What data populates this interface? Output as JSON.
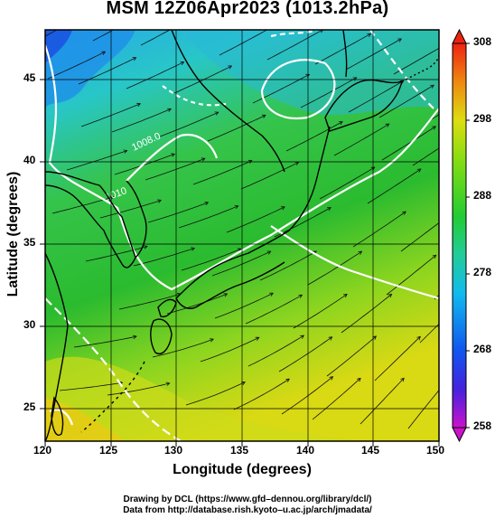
{
  "title": "MSM 12Z06Apr2023 (1013.2hPa)",
  "x_axis": {
    "label": "Longitude (degrees)",
    "ticks": [
      "120",
      "125",
      "130",
      "135",
      "140",
      "145",
      "150"
    ]
  },
  "y_axis": {
    "label": "Latitude  (degrees)",
    "ticks": [
      "25",
      "30",
      "35",
      "40",
      "45"
    ]
  },
  "colorbar": {
    "ticks": [
      "258",
      "268",
      "278",
      "288",
      "298",
      "308"
    ]
  },
  "contour_labels": [
    "1008.0",
    "1010"
  ],
  "credits": [
    "Drawing by DCL (https://www.gfd–dennou.org/library/dcl/)",
    "Data from http://database.rish.kyoto–u.ac.jp/arch/jmadata/"
  ]
}
